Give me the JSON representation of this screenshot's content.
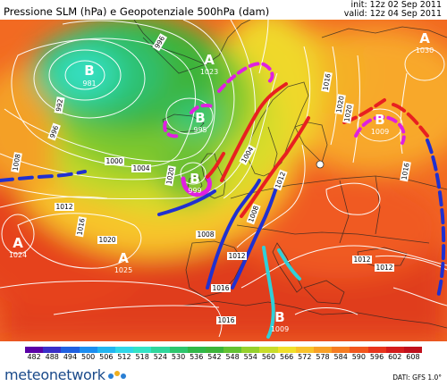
{
  "header": {
    "title": "Pressione SLM (hPa) e Geopotenziale 500hPa (dam)",
    "init": "init: 12z 02 Sep 2011",
    "valid": "valid: 12z 04 Sep 2011"
  },
  "pressure_centers": [
    {
      "type": "B",
      "value": "981",
      "name": "low-iceland"
    },
    {
      "type": "A",
      "value": "1023",
      "name": "high-greenland"
    },
    {
      "type": "B",
      "value": "995",
      "name": "low-north-atlantic"
    },
    {
      "type": "B",
      "value": "999",
      "name": "low-british"
    },
    {
      "type": "A",
      "value": "1030",
      "name": "high-russia"
    },
    {
      "type": "B",
      "value": "1009",
      "name": "low-north-russia"
    },
    {
      "type": "A",
      "value": "1024",
      "name": "high-west-atlantic"
    },
    {
      "type": "A",
      "value": "1025",
      "name": "high-azores"
    },
    {
      "type": "B",
      "value": "1009",
      "name": "low-north-africa"
    }
  ],
  "isobar_labels": [
    "996",
    "992",
    "996",
    "1000",
    "1004",
    "1008",
    "1012",
    "1016",
    "1020",
    "1020",
    "1008",
    "1004",
    "1012",
    "1012",
    "1016",
    "1016",
    "1020",
    "1020",
    "1016",
    "1008",
    "1012",
    "1012",
    "1016"
  ],
  "colorbar": {
    "ticks": [
      "482",
      "488",
      "494",
      "500",
      "506",
      "512",
      "518",
      "524",
      "530",
      "536",
      "542",
      "548",
      "554",
      "560",
      "566",
      "572",
      "578",
      "584",
      "590",
      "596",
      "602",
      "608"
    ],
    "colors": [
      "#5a00a6",
      "#3a2fc8",
      "#2060e0",
      "#1c8ef0",
      "#22b5f0",
      "#30d6e8",
      "#33e3c6",
      "#2fd69c",
      "#2ec66e",
      "#30b848",
      "#3cb43a",
      "#62c232",
      "#95d02c",
      "#c8dc2a",
      "#f0e02a",
      "#f8c22a",
      "#f8a026",
      "#f67c22",
      "#f2561e",
      "#e8341c",
      "#d41c1c",
      "#c0101c"
    ]
  },
  "footer": {
    "logo": "meteonetwork",
    "credit": "DATI: GFS 1.0°"
  }
}
